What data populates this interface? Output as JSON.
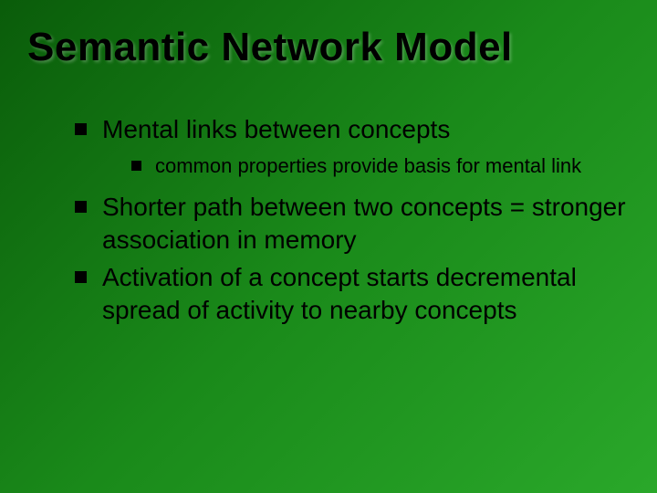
{
  "slide": {
    "title": "Semantic Network Model",
    "background_gradient": [
      "#0a5c0a",
      "#1a8a1a",
      "#2aa82a"
    ],
    "title_color": "#000000",
    "title_fontsize": 44,
    "body_color": "#000000",
    "bullets": [
      {
        "text": "Mental links between concepts",
        "fontsize": 28,
        "marker_color": "#000000",
        "sub": [
          {
            "text": "common properties provide basis for mental link",
            "fontsize": 22,
            "marker_color": "#000000"
          }
        ]
      },
      {
        "text": "Shorter path between two concepts = stronger association in memory",
        "fontsize": 28,
        "marker_color": "#000000"
      },
      {
        "text": "Activation of a concept starts decremental spread of activity to nearby concepts",
        "fontsize": 28,
        "marker_color": "#000000"
      }
    ]
  }
}
